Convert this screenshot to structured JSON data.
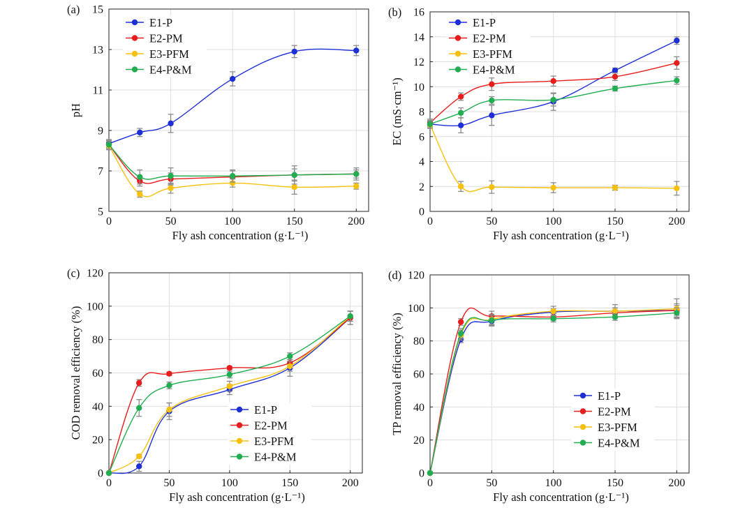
{
  "colors": {
    "E1-P": "#1f2fd6",
    "E2-PM": "#e81c1c",
    "E3-PFM": "#f6c10e",
    "E4-P&M": "#22ad52",
    "grid": "#dedede",
    "errorbar": "#8a8a8a"
  },
  "chart_data": [
    {
      "panel": "(a)",
      "type": "line",
      "xlabel": "Fly ash concentration (g·L⁻¹)",
      "ylabel": "pH",
      "xlim": [
        0,
        210
      ],
      "ylim": [
        5,
        15
      ],
      "xticks": [
        0,
        50,
        100,
        150,
        200
      ],
      "yticks": [
        5,
        7,
        9,
        11,
        13,
        15
      ],
      "grid": true,
      "legend_position": "top-left",
      "x": [
        0,
        25,
        50,
        100,
        150,
        200
      ],
      "series": [
        {
          "name": "E1-P",
          "values": [
            8.35,
            8.9,
            9.35,
            11.55,
            12.9,
            12.95
          ],
          "errors": [
            0.2,
            0.2,
            0.45,
            0.35,
            0.3,
            0.25
          ]
        },
        {
          "name": "E2-PM",
          "values": [
            8.3,
            6.5,
            6.6,
            6.7,
            6.8,
            6.85
          ],
          "errors": [
            0.2,
            0.25,
            0.3,
            0.3,
            0.3,
            0.2
          ]
        },
        {
          "name": "E3-PFM",
          "values": [
            8.25,
            5.85,
            6.15,
            6.4,
            6.2,
            6.25
          ],
          "errors": [
            0.2,
            0.15,
            0.25,
            0.2,
            0.35,
            0.15
          ]
        },
        {
          "name": "E4-P&M",
          "values": [
            8.3,
            6.7,
            6.75,
            6.75,
            6.8,
            6.85
          ],
          "errors": [
            0.25,
            0.35,
            0.4,
            0.3,
            0.45,
            0.3
          ]
        }
      ]
    },
    {
      "panel": "(b)",
      "type": "line",
      "xlabel": "Fly ash concentration (g·L⁻¹)",
      "ylabel": "EC (mS·cm⁻¹)",
      "xlim": [
        0,
        210
      ],
      "ylim": [
        0,
        16
      ],
      "xticks": [
        0,
        50,
        100,
        150,
        200
      ],
      "yticks": [
        0,
        2,
        4,
        6,
        8,
        10,
        12,
        14,
        16
      ],
      "grid": true,
      "legend_position": "top-left",
      "x": [
        0,
        25,
        50,
        100,
        150,
        200
      ],
      "series": [
        {
          "name": "E1-P",
          "values": [
            7.0,
            6.9,
            7.7,
            8.8,
            11.3,
            13.7
          ],
          "errors": [
            0.3,
            0.6,
            0.8,
            0.7,
            0.2,
            0.3
          ]
        },
        {
          "name": "E2-PM",
          "values": [
            7.1,
            9.2,
            10.2,
            10.45,
            10.8,
            11.9
          ],
          "errors": [
            0.3,
            0.3,
            0.5,
            0.4,
            0.3,
            0.5
          ]
        },
        {
          "name": "E3-PFM",
          "values": [
            6.95,
            2.0,
            1.95,
            1.9,
            1.9,
            1.85
          ],
          "errors": [
            0.3,
            0.4,
            0.5,
            0.4,
            0.2,
            0.55
          ]
        },
        {
          "name": "E4-P&M",
          "values": [
            7.0,
            7.9,
            8.9,
            8.95,
            9.85,
            10.5
          ],
          "errors": [
            0.3,
            0.4,
            0.3,
            0.5,
            0.2,
            0.3
          ]
        }
      ]
    },
    {
      "panel": "(c)",
      "type": "line",
      "xlabel": "Fly ash concentration (g·L⁻¹)",
      "ylabel": "COD removal efficiency (%)",
      "xlim": [
        0,
        210
      ],
      "ylim": [
        0,
        120
      ],
      "xticks": [
        0,
        50,
        100,
        150,
        200
      ],
      "yticks": [
        0,
        20,
        40,
        60,
        80,
        100,
        120
      ],
      "grid": true,
      "legend_position": "bottom-right",
      "x": [
        0,
        25,
        50,
        100,
        150,
        200
      ],
      "series": [
        {
          "name": "E1-P",
          "values": [
            0,
            4,
            37,
            50,
            63,
            93
          ],
          "errors": [
            0,
            3,
            5,
            3,
            5,
            4
          ]
        },
        {
          "name": "E2-PM",
          "values": [
            0,
            54,
            59.5,
            63,
            66,
            93
          ],
          "errors": [
            0,
            2,
            1,
            1,
            2,
            4
          ]
        },
        {
          "name": "E3-PFM",
          "values": [
            0,
            10,
            38,
            52,
            64,
            94
          ],
          "errors": [
            0,
            1,
            4,
            3,
            3,
            3
          ]
        },
        {
          "name": "E4-P&M",
          "values": [
            0,
            39,
            52.5,
            59,
            70,
            94
          ],
          "errors": [
            0,
            5,
            2,
            2,
            2,
            3
          ]
        }
      ]
    },
    {
      "panel": "(d)",
      "type": "line",
      "xlabel": "Fly ash concentration (g·L⁻¹)",
      "ylabel": "TP removal efficiency (%)",
      "xlim": [
        0,
        210
      ],
      "ylim": [
        0,
        120
      ],
      "xticks": [
        0,
        50,
        100,
        150,
        200
      ],
      "yticks": [
        0,
        20,
        40,
        60,
        80,
        100,
        120
      ],
      "grid": true,
      "legend_position": "bottom-right",
      "x": [
        0,
        25,
        50,
        100,
        150,
        200
      ],
      "series": [
        {
          "name": "E1-P",
          "values": [
            0,
            81,
            92,
            97.5,
            98,
            98.5
          ],
          "errors": [
            0,
            2,
            3,
            2,
            2,
            3
          ]
        },
        {
          "name": "E2-PM",
          "values": [
            0,
            91.5,
            95,
            94.5,
            97,
            98.5
          ],
          "errors": [
            0,
            2,
            3,
            2,
            3,
            4
          ]
        },
        {
          "name": "E3-PFM",
          "values": [
            0,
            83.5,
            93,
            98,
            98,
            99.5
          ],
          "errors": [
            0,
            3,
            3,
            3,
            4,
            6
          ]
        },
        {
          "name": "E4-P&M",
          "values": [
            0,
            84.5,
            92.5,
            93.5,
            94.5,
            97
          ],
          "errors": [
            0,
            3,
            3,
            2,
            2,
            3
          ]
        }
      ]
    }
  ]
}
